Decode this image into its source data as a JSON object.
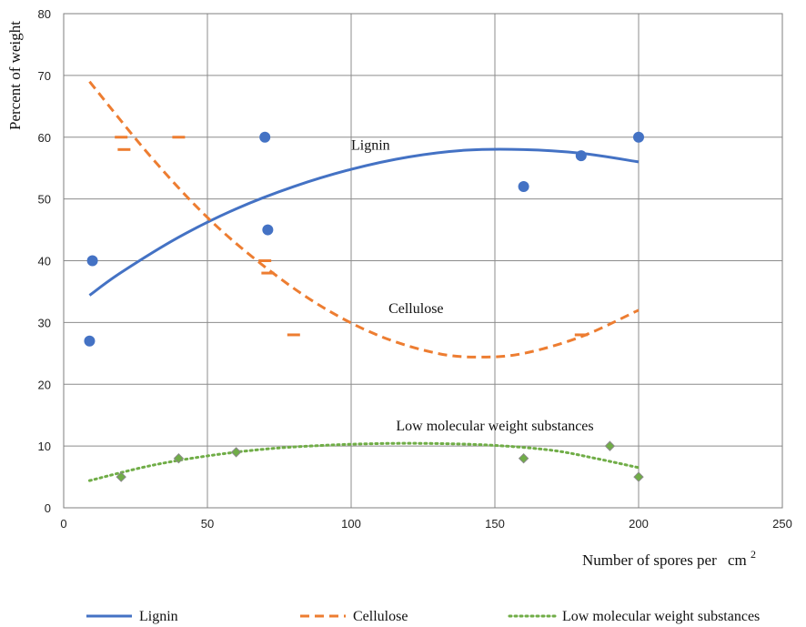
{
  "chart_data": {
    "type": "scatter",
    "xlabel": "Number of spores per",
    "xlabel_unit": "cm",
    "xlabel_sup": "2",
    "ylabel": "Percent of weight",
    "xlim": [
      0,
      250
    ],
    "ylim": [
      0,
      80
    ],
    "xticks": [
      "0",
      "50",
      "100",
      "150",
      "200",
      "250"
    ],
    "yticks": [
      "0",
      "10",
      "20",
      "30",
      "40",
      "50",
      "60",
      "70",
      "80"
    ],
    "grid": true,
    "legend_position": "bottom",
    "series": [
      {
        "name": "Lignin",
        "color": "#4472C4",
        "marker": "circle",
        "line_style": "solid",
        "points": [
          [
            9,
            27
          ],
          [
            10,
            40
          ],
          [
            70,
            60
          ],
          [
            71,
            45
          ],
          [
            160,
            52
          ],
          [
            180,
            57
          ],
          [
            200,
            60
          ]
        ],
        "trend": [
          [
            9,
            34.4
          ],
          [
            20,
            38.1
          ],
          [
            40,
            43.8
          ],
          [
            60,
            48.4
          ],
          [
            80,
            52.0
          ],
          [
            100,
            54.8
          ],
          [
            120,
            56.8
          ],
          [
            140,
            57.9
          ],
          [
            160,
            58.0
          ],
          [
            180,
            57.4
          ],
          [
            200,
            56.0
          ]
        ]
      },
      {
        "name": "Cellulose",
        "color": "#ED7D31",
        "marker": "dash",
        "line_style": "dashed",
        "points": [
          [
            20,
            60
          ],
          [
            21,
            58
          ],
          [
            40,
            60
          ],
          [
            70,
            40
          ],
          [
            71,
            38
          ],
          [
            80,
            28
          ],
          [
            180,
            28
          ]
        ],
        "trend": [
          [
            9,
            69.0
          ],
          [
            30,
            57.0
          ],
          [
            50,
            47.0
          ],
          [
            70,
            39.0
          ],
          [
            90,
            32.5
          ],
          [
            110,
            27.8
          ],
          [
            130,
            25.0
          ],
          [
            145,
            24.4
          ],
          [
            160,
            25.0
          ],
          [
            180,
            27.7
          ],
          [
            200,
            32.0
          ]
        ]
      },
      {
        "name": "Low molecular weight substances",
        "color": "#70AD47",
        "marker": "diamond",
        "line_style": "dotted",
        "points": [
          [
            20,
            5
          ],
          [
            40,
            8
          ],
          [
            60,
            9
          ],
          [
            160,
            8
          ],
          [
            190,
            10
          ],
          [
            200,
            5
          ]
        ],
        "trend": [
          [
            9,
            4.4
          ],
          [
            30,
            6.8
          ],
          [
            50,
            8.4
          ],
          [
            70,
            9.5
          ],
          [
            90,
            10.1
          ],
          [
            110,
            10.4
          ],
          [
            130,
            10.4
          ],
          [
            150,
            10.1
          ],
          [
            170,
            9.3
          ],
          [
            185,
            8.0
          ],
          [
            200,
            6.5
          ]
        ]
      }
    ],
    "annotations": [
      {
        "text": "Lignin",
        "x": 100,
        "y": 58
      },
      {
        "text": "Cellulose",
        "x": 113,
        "y": 31.5
      },
      {
        "text": "Low molecular weight substances",
        "x": 150,
        "y": 12.5
      }
    ]
  }
}
